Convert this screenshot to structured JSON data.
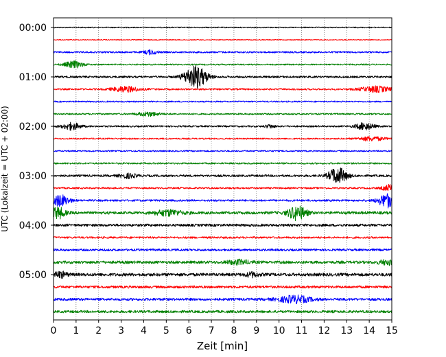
{
  "chart_data": {
    "type": "line",
    "title": "",
    "xlabel": "Zeit  [min]",
    "ylabel": "UTC (Lokalzeit = UTC + 02:00)",
    "xlim": [
      0,
      15
    ],
    "x_ticks": [
      "0",
      "1",
      "2",
      "3",
      "4",
      "5",
      "6",
      "7",
      "8",
      "9",
      "10",
      "11",
      "12",
      "13",
      "14",
      "15"
    ],
    "y_tick_labels": [
      "00:00",
      "01:00",
      "02:00",
      "03:00",
      "04:00",
      "05:00"
    ],
    "grid": "vertical dotted at each minute",
    "trace_colors": [
      "#000000",
      "#ff0000",
      "#0000ff",
      "#008000"
    ],
    "series": [
      {
        "start": "00:00",
        "color": "black",
        "noise": 0.8,
        "events": []
      },
      {
        "start": "00:15",
        "color": "red",
        "noise": 0.6,
        "events": []
      },
      {
        "start": "00:30",
        "color": "blue",
        "noise": 1.2,
        "events": [
          {
            "t": 4.3,
            "amp": 3,
            "w": 0.3
          }
        ]
      },
      {
        "start": "00:45",
        "color": "green",
        "noise": 1.0,
        "events": [
          {
            "t": 0.9,
            "amp": 5,
            "w": 0.4
          }
        ]
      },
      {
        "start": "01:00",
        "color": "black",
        "noise": 1.4,
        "events": [
          {
            "t": 6.3,
            "amp": 16,
            "w": 0.5
          }
        ]
      },
      {
        "start": "01:15",
        "color": "red",
        "noise": 1.2,
        "events": [
          {
            "t": 3.2,
            "amp": 4,
            "w": 0.6
          },
          {
            "t": 14.3,
            "amp": 4,
            "w": 0.7
          }
        ]
      },
      {
        "start": "01:30",
        "color": "blue",
        "noise": 1.0,
        "events": []
      },
      {
        "start": "01:45",
        "color": "green",
        "noise": 1.1,
        "events": [
          {
            "t": 4.2,
            "amp": 3,
            "w": 0.5
          }
        ]
      },
      {
        "start": "02:00",
        "color": "black",
        "noise": 1.2,
        "events": [
          {
            "t": 0.8,
            "amp": 5,
            "w": 0.4
          },
          {
            "t": 9.6,
            "amp": 2.5,
            "w": 0.2
          },
          {
            "t": 13.8,
            "amp": 5,
            "w": 0.4
          }
        ]
      },
      {
        "start": "02:15",
        "color": "red",
        "noise": 1.0,
        "events": [
          {
            "t": 14.1,
            "amp": 3,
            "w": 0.6
          }
        ]
      },
      {
        "start": "02:30",
        "color": "blue",
        "noise": 1.0,
        "events": []
      },
      {
        "start": "02:45",
        "color": "green",
        "noise": 1.2,
        "events": []
      },
      {
        "start": "03:00",
        "color": "black",
        "noise": 1.5,
        "events": [
          {
            "t": 3.3,
            "amp": 3,
            "w": 0.4
          },
          {
            "t": 12.6,
            "amp": 12,
            "w": 0.4
          }
        ]
      },
      {
        "start": "03:15",
        "color": "red",
        "noise": 1.2,
        "events": [
          {
            "t": 15.0,
            "amp": 5,
            "w": 0.4
          }
        ]
      },
      {
        "start": "03:30",
        "color": "blue",
        "noise": 1.4,
        "events": [
          {
            "t": 0.3,
            "amp": 8,
            "w": 0.4
          },
          {
            "t": 14.8,
            "amp": 10,
            "w": 0.4
          }
        ]
      },
      {
        "start": "03:45",
        "color": "green",
        "noise": 2.0,
        "events": [
          {
            "t": 0.2,
            "amp": 8,
            "w": 0.3
          },
          {
            "t": 5.1,
            "amp": 4,
            "w": 0.6
          },
          {
            "t": 10.8,
            "amp": 10,
            "w": 0.4
          }
        ]
      },
      {
        "start": "04:00",
        "color": "black",
        "noise": 1.8,
        "events": []
      },
      {
        "start": "04:15",
        "color": "red",
        "noise": 1.4,
        "events": []
      },
      {
        "start": "04:30",
        "color": "blue",
        "noise": 1.6,
        "events": []
      },
      {
        "start": "04:45",
        "color": "green",
        "noise": 2.0,
        "events": [
          {
            "t": 8.2,
            "amp": 3,
            "w": 0.5
          },
          {
            "t": 14.8,
            "amp": 3,
            "w": 0.4
          }
        ]
      },
      {
        "start": "05:00",
        "color": "black",
        "noise": 2.2,
        "events": [
          {
            "t": 0.3,
            "amp": 4,
            "w": 0.3
          },
          {
            "t": 8.8,
            "amp": 3,
            "w": 0.3
          }
        ]
      },
      {
        "start": "05:15",
        "color": "red",
        "noise": 1.8,
        "events": []
      },
      {
        "start": "05:30",
        "color": "blue",
        "noise": 1.8,
        "events": [
          {
            "t": 10.7,
            "amp": 5,
            "w": 0.7
          }
        ]
      },
      {
        "start": "05:45",
        "color": "green",
        "noise": 1.8,
        "events": []
      }
    ]
  }
}
